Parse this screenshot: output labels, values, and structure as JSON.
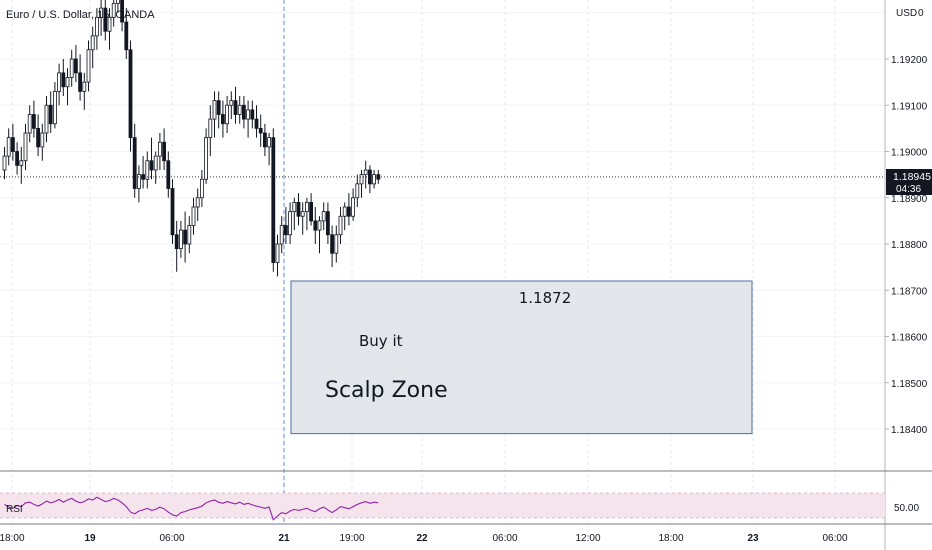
{
  "chart_data": {
    "type": "candlestick",
    "title": "Euro / U.S. Dollar, 15, OANDA",
    "currency": "USD",
    "currency_marker": "0",
    "y_ticks": [
      "1.19200",
      "1.19100",
      "1.19000",
      "1.18900",
      "1.18800",
      "1.18700",
      "1.18600",
      "1.18500",
      "1.18400"
    ],
    "ylim": [
      1.1836,
      1.1933
    ],
    "x_ticks": [
      "18:00",
      "19",
      "06:00",
      "21",
      "19:00",
      "22",
      "06:00",
      "12:00",
      "18:00",
      "23",
      "06:00"
    ],
    "last_price": "1.18945",
    "countdown": "04:36",
    "candles": [
      [
        1.1896,
        1.1901,
        1.1894,
        1.1899
      ],
      [
        1.1899,
        1.1905,
        1.1897,
        1.1903
      ],
      [
        1.1903,
        1.1906,
        1.1898,
        1.19
      ],
      [
        1.19,
        1.1902,
        1.1895,
        1.1897
      ],
      [
        1.1897,
        1.1901,
        1.1893,
        1.1898
      ],
      [
        1.1898,
        1.1906,
        1.1896,
        1.1904
      ],
      [
        1.1904,
        1.191,
        1.1902,
        1.1908
      ],
      [
        1.1908,
        1.1911,
        1.1903,
        1.1905
      ],
      [
        1.1905,
        1.1908,
        1.1899,
        1.1901
      ],
      [
        1.1901,
        1.1906,
        1.1898,
        1.1904
      ],
      [
        1.1904,
        1.1912,
        1.1902,
        1.191
      ],
      [
        1.191,
        1.1913,
        1.1904,
        1.1906
      ],
      [
        1.1906,
        1.1915,
        1.1905,
        1.1913
      ],
      [
        1.1913,
        1.1919,
        1.191,
        1.1917
      ],
      [
        1.1917,
        1.192,
        1.1912,
        1.1914
      ],
      [
        1.1914,
        1.1918,
        1.191,
        1.1916
      ],
      [
        1.1916,
        1.1922,
        1.1914,
        1.192
      ],
      [
        1.192,
        1.1923,
        1.1915,
        1.1917
      ],
      [
        1.1917,
        1.1921,
        1.1911,
        1.1913
      ],
      [
        1.1913,
        1.1917,
        1.1909,
        1.1915
      ],
      [
        1.1915,
        1.1924,
        1.1913,
        1.1922
      ],
      [
        1.1922,
        1.1927,
        1.1918,
        1.1925
      ],
      [
        1.1925,
        1.1931,
        1.1922,
        1.1929
      ],
      [
        1.1929,
        1.1933,
        1.1925,
        1.1931
      ],
      [
        1.1931,
        1.1934,
        1.1924,
        1.1926
      ],
      [
        1.1926,
        1.1931,
        1.1922,
        1.1929
      ],
      [
        1.1929,
        1.1934,
        1.1927,
        1.1932
      ],
      [
        1.1932,
        1.1935,
        1.193,
        1.1933
      ],
      [
        1.1933,
        1.1935,
        1.1926,
        1.1928
      ],
      [
        1.1928,
        1.1931,
        1.192,
        1.1922
      ],
      [
        1.1922,
        1.1924,
        1.19,
        1.1903
      ],
      [
        1.1903,
        1.1906,
        1.189,
        1.1892
      ],
      [
        1.1892,
        1.1897,
        1.1889,
        1.1895
      ],
      [
        1.1895,
        1.1899,
        1.1892,
        1.1894
      ],
      [
        1.1894,
        1.19,
        1.1892,
        1.1898
      ],
      [
        1.1898,
        1.1903,
        1.1894,
        1.1896
      ],
      [
        1.1896,
        1.19,
        1.1893,
        1.1899
      ],
      [
        1.1899,
        1.1904,
        1.1896,
        1.1902
      ],
      [
        1.1902,
        1.1905,
        1.1896,
        1.1898
      ],
      [
        1.1898,
        1.19,
        1.189,
        1.1892
      ],
      [
        1.1892,
        1.1894,
        1.188,
        1.1882
      ],
      [
        1.1882,
        1.1885,
        1.1874,
        1.1879
      ],
      [
        1.1879,
        1.1885,
        1.1877,
        1.1883
      ],
      [
        1.1883,
        1.1887,
        1.1876,
        1.188
      ],
      [
        1.188,
        1.1886,
        1.1878,
        1.1884
      ],
      [
        1.1884,
        1.189,
        1.1882,
        1.1888
      ],
      [
        1.1888,
        1.1892,
        1.1885,
        1.189
      ],
      [
        1.189,
        1.1896,
        1.1888,
        1.1894
      ],
      [
        1.1894,
        1.1905,
        1.1893,
        1.1903
      ],
      [
        1.1903,
        1.191,
        1.1899,
        1.1907
      ],
      [
        1.1907,
        1.1913,
        1.1903,
        1.1911
      ],
      [
        1.1911,
        1.1913,
        1.1905,
        1.1908
      ],
      [
        1.1908,
        1.1911,
        1.1903,
        1.1906
      ],
      [
        1.1906,
        1.1912,
        1.1904,
        1.191
      ],
      [
        1.191,
        1.1913,
        1.1907,
        1.1911
      ],
      [
        1.1911,
        1.1914,
        1.1906,
        1.1908
      ],
      [
        1.1908,
        1.1912,
        1.1906,
        1.191
      ],
      [
        1.191,
        1.1912,
        1.1905,
        1.1907
      ],
      [
        1.1907,
        1.1911,
        1.1903,
        1.1909
      ],
      [
        1.1909,
        1.1911,
        1.1905,
        1.1907
      ],
      [
        1.1907,
        1.191,
        1.1903,
        1.1905
      ],
      [
        1.1905,
        1.1908,
        1.1901,
        1.1904
      ],
      [
        1.1904,
        1.1906,
        1.1899,
        1.1901
      ],
      [
        1.1901,
        1.1904,
        1.1897,
        1.1903
      ],
      [
        1.1903,
        1.1905,
        1.1874,
        1.1876
      ],
      [
        1.1876,
        1.1882,
        1.1873,
        1.188
      ],
      [
        1.188,
        1.1886,
        1.1878,
        1.1884
      ],
      [
        1.1884,
        1.1888,
        1.188,
        1.1882
      ],
      [
        1.1882,
        1.1889,
        1.188,
        1.1887
      ],
      [
        1.1887,
        1.189,
        1.1883,
        1.1889
      ],
      [
        1.1889,
        1.1891,
        1.1884,
        1.1886
      ],
      [
        1.1886,
        1.1889,
        1.1882,
        1.1887
      ],
      [
        1.1887,
        1.189,
        1.1883,
        1.1889
      ],
      [
        1.1889,
        1.1891,
        1.1884,
        1.1885
      ],
      [
        1.1885,
        1.1888,
        1.188,
        1.1883
      ],
      [
        1.1883,
        1.1886,
        1.1878,
        1.1885
      ],
      [
        1.1885,
        1.1889,
        1.1883,
        1.1887
      ],
      [
        1.1887,
        1.1889,
        1.188,
        1.1882
      ],
      [
        1.1882,
        1.1884,
        1.1875,
        1.1878
      ],
      [
        1.1878,
        1.1884,
        1.1876,
        1.1882
      ],
      [
        1.1882,
        1.1888,
        1.188,
        1.1886
      ],
      [
        1.1886,
        1.1889,
        1.1883,
        1.1888
      ],
      [
        1.1888,
        1.1891,
        1.1884,
        1.1886
      ],
      [
        1.1886,
        1.1892,
        1.1885,
        1.189
      ],
      [
        1.189,
        1.1895,
        1.1888,
        1.1893
      ],
      [
        1.1893,
        1.1896,
        1.189,
        1.1895
      ],
      [
        1.1895,
        1.1898,
        1.1892,
        1.1896
      ],
      [
        1.1896,
        1.1897,
        1.1891,
        1.1893
      ],
      [
        1.1893,
        1.1896,
        1.1892,
        1.1895
      ],
      [
        1.1895,
        1.1896,
        1.1893,
        1.1894
      ]
    ],
    "rsi": {
      "label": "RSI",
      "level": "50.00",
      "values": [
        52,
        47,
        45,
        50,
        48,
        55,
        56,
        52,
        49,
        53,
        58,
        55,
        57,
        61,
        56,
        60,
        63,
        58,
        55,
        57,
        62,
        60,
        65,
        61,
        57,
        59,
        63,
        60,
        55,
        48,
        38,
        35,
        40,
        42,
        45,
        41,
        43,
        47,
        44,
        38,
        33,
        31,
        37,
        39,
        42,
        44,
        46,
        49,
        55,
        58,
        60,
        56,
        54,
        57,
        55,
        53,
        56,
        52,
        54,
        51,
        49,
        47,
        45,
        47,
        24,
        31,
        37,
        35,
        40,
        43,
        41,
        43,
        45,
        41,
        39,
        44,
        47,
        42,
        37,
        42,
        48,
        46,
        44,
        48,
        52,
        55,
        57,
        54,
        56,
        55
      ]
    },
    "annotations": {
      "price": "1.1872",
      "buy": "Buy it",
      "zone": "Scalp Zone",
      "zone_top_price": 1.1872,
      "zone_bottom_price": 1.1839
    },
    "colors": {
      "candle": "#131722",
      "zone_fill": "#e3e7ec",
      "zone_border": "#4c6fa8",
      "rsi_line": "#8e24aa",
      "rsi_band": "#f5e4ec",
      "session_line": "#5b8cd6",
      "grid": "#d9dde3",
      "price_label_bg": "#131722"
    }
  }
}
